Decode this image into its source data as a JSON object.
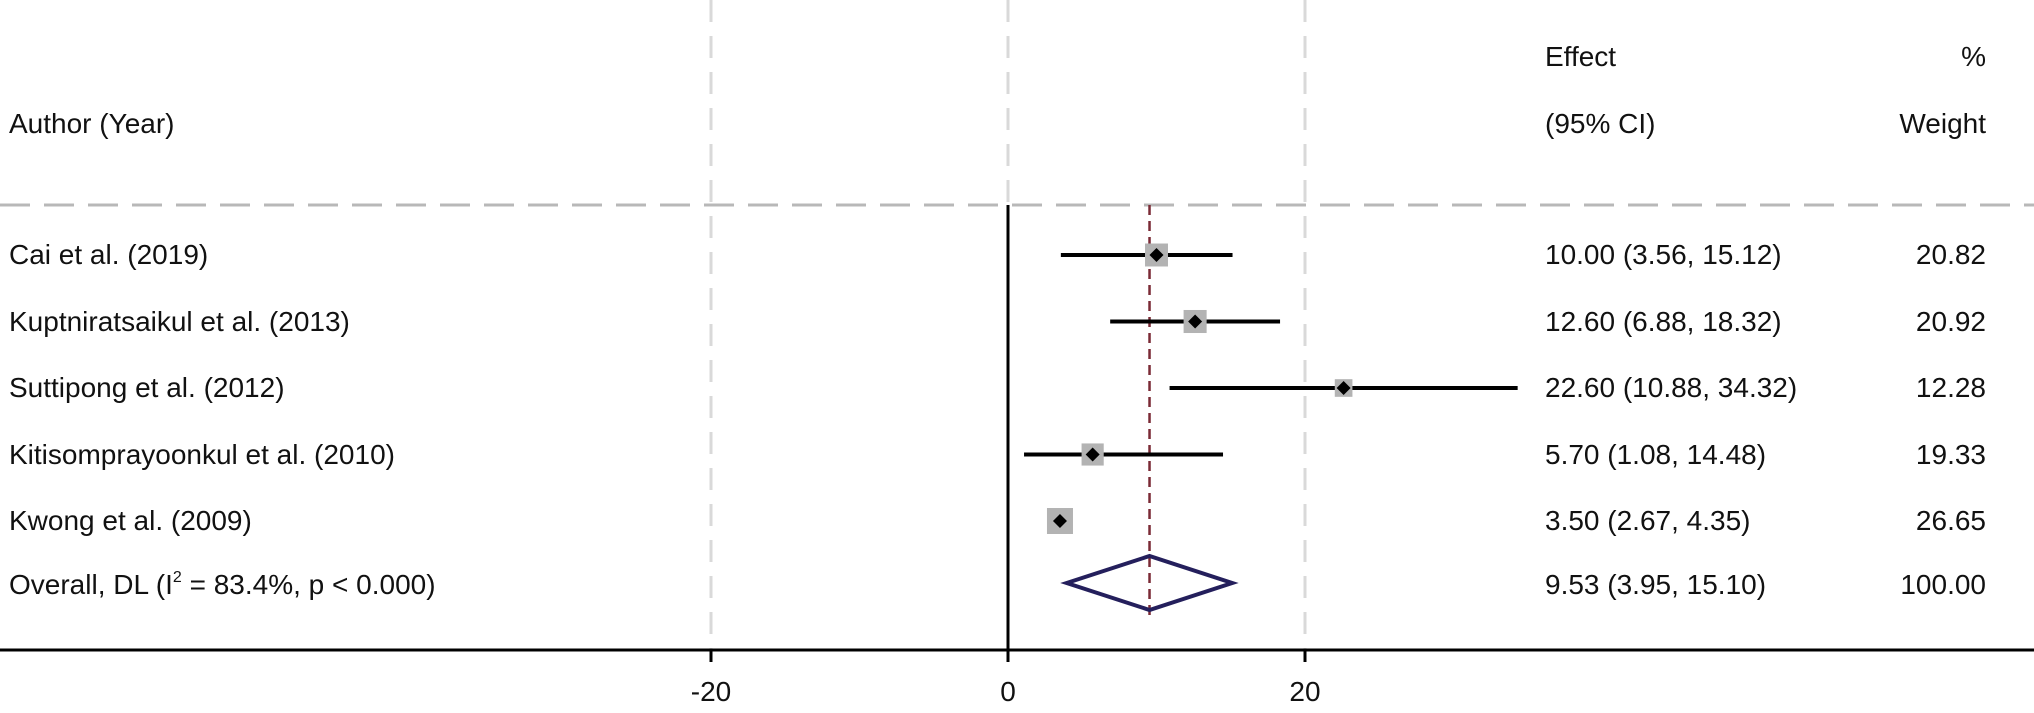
{
  "headers": {
    "author": "Author (Year)",
    "effect_line1": "Effect",
    "effect_line2": "(95% CI)",
    "weight_line1": "%",
    "weight_line2": "Weight"
  },
  "overall": {
    "label_prefix": "Overall, DL (I",
    "label_sup": "2",
    "label_suffix": " = 83.4%, p < 0.000)",
    "effect_text": "9.53 (3.95, 15.10)",
    "weight_text": "100.00"
  },
  "colors": {
    "marker": "#000000",
    "weight_box": "#b3b3b3",
    "ci_line": "#000000",
    "overall_diamond": "#241f5c",
    "reference_line": "#7a2a35",
    "grid": "#d9d9d9",
    "header_rule": "#b8b8b8"
  },
  "chart_data": {
    "type": "forest",
    "xlim": [
      -30,
      50
    ],
    "xticks": [
      -20,
      0,
      20
    ],
    "xtick_labels": [
      "-20",
      "0",
      "20"
    ],
    "grid": true,
    "null_line": 0,
    "pooled_line": 9.53,
    "studies": [
      {
        "label": "Cai et al.  (2019)",
        "effect": 10.0,
        "lower": 3.56,
        "upper": 15.12,
        "weight": 20.82,
        "effect_text": "10.00 (3.56, 15.12)",
        "weight_text": "20.82"
      },
      {
        "label": "Kuptniratsaikul et al.  (2013)",
        "effect": 12.6,
        "lower": 6.88,
        "upper": 18.32,
        "weight": 20.92,
        "effect_text": "12.60 (6.88, 18.32)",
        "weight_text": "20.92"
      },
      {
        "label": "Suttipong et al.  (2012)",
        "effect": 22.6,
        "lower": 10.88,
        "upper": 34.32,
        "weight": 12.28,
        "effect_text": "22.60 (10.88, 34.32)",
        "weight_text": "12.28"
      },
      {
        "label": "Kitisomprayoonkul et al.  (2010)",
        "effect": 5.7,
        "lower": 1.08,
        "upper": 14.48,
        "weight": 19.33,
        "effect_text": "5.70 (1.08, 14.48)",
        "weight_text": "19.33"
      },
      {
        "label": "Kwong et al.  (2009)",
        "effect": 3.5,
        "lower": 2.67,
        "upper": 4.35,
        "weight": 26.65,
        "effect_text": "3.50 (2.67, 4.35)",
        "weight_text": "26.65"
      }
    ],
    "overall": {
      "effect": 9.53,
      "lower": 3.95,
      "upper": 15.1,
      "weight": 100.0
    }
  }
}
